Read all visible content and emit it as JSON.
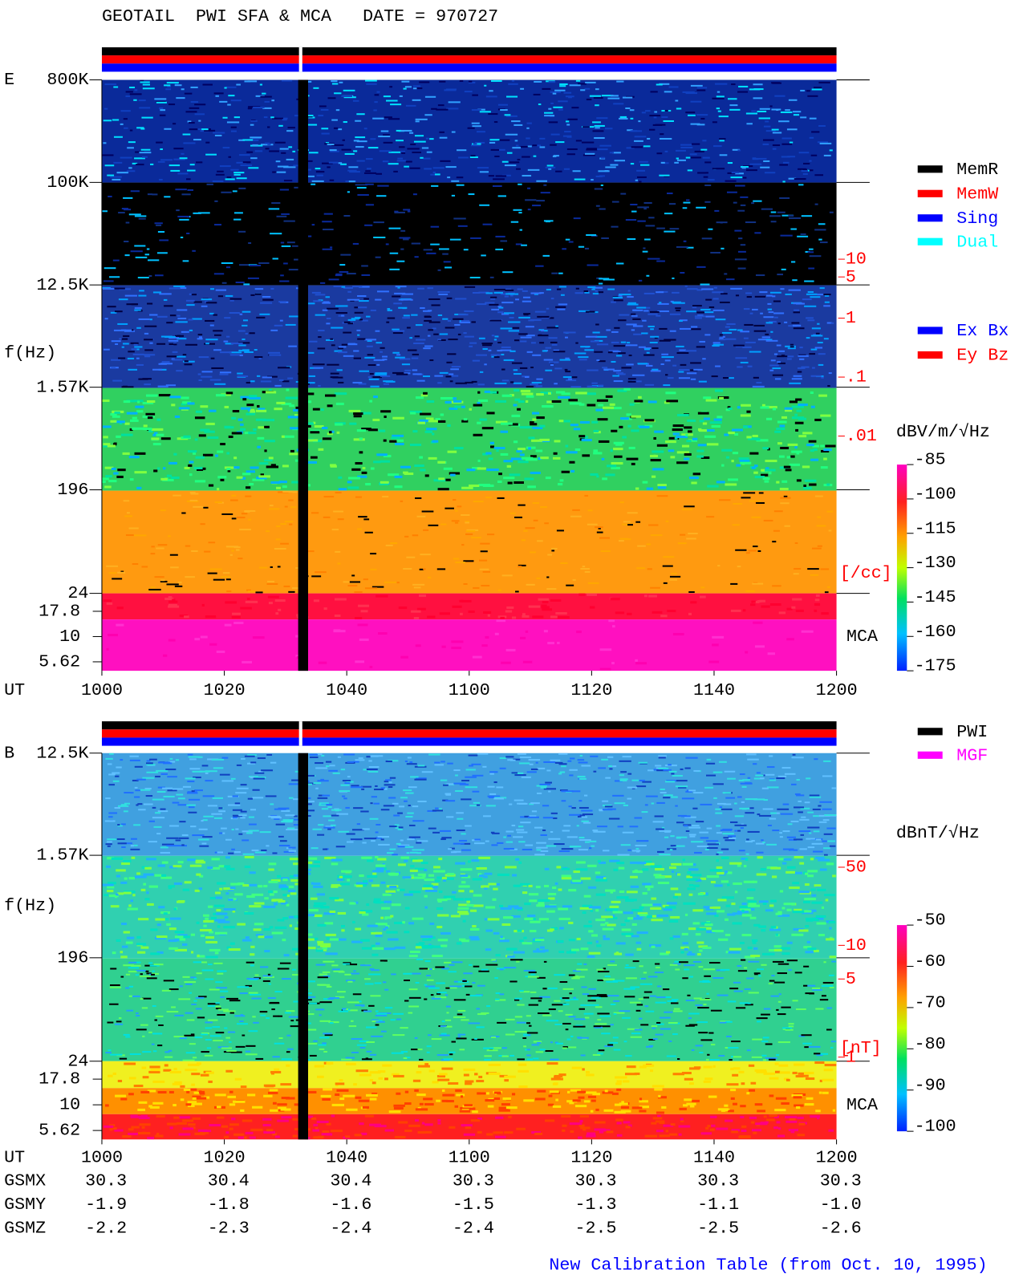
{
  "title": "GEOTAIL  PWI SFA & MCA   DATE = 970727",
  "footer": "New Calibration Table (from Oct. 10, 1995)",
  "chart_data": [
    {
      "type": "spectrogram",
      "panel_label": "E",
      "ylabel": "f(Hz)",
      "xlabel": "UT",
      "categories": [
        "1000",
        "1020",
        "1040",
        "1100",
        "1120",
        "1140",
        "1200"
      ],
      "yscale": "log",
      "ylim": [
        24,
        800000
      ],
      "yticks": [
        {
          "value": 800000,
          "label": "800K"
        },
        {
          "value": 100000,
          "label": "100K"
        },
        {
          "value": 12500,
          "label": "12.5K"
        },
        {
          "value": 1570,
          "label": "1.57K"
        },
        196,
        24
      ],
      "mca_label": "MCA",
      "mca_ylim": [
        5.62,
        17.8
      ],
      "mca_yticks": [
        17.8,
        10,
        5.62
      ],
      "y2lim": [
        0.01,
        10
      ],
      "y2ticks": [
        10,
        5,
        1,
        {
          "value": 0.1,
          "label": ".1"
        },
        {
          "value": 0.01,
          "label": ".01"
        }
      ],
      "y2label": "[/cc]",
      "y2color": "#ff0000",
      "colorbar": {
        "label": "dBV/m/√Hz",
        "clim": [
          -175,
          -85
        ],
        "ticks": [
          -85,
          -100,
          -115,
          -130,
          -145,
          -160,
          -175
        ]
      },
      "legend": [
        {
          "name": "MemR",
          "color": "#000000"
        },
        {
          "name": "MemW",
          "color": "#ff0000"
        },
        {
          "name": "Sing",
          "color": "#0000ff"
        },
        {
          "name": "Dual",
          "color": "#00ffff"
        }
      ],
      "legend2": [
        {
          "name": "Ex Bx",
          "color": "#0000ff"
        },
        {
          "name": "Ey Bz",
          "color": "#ff0000"
        }
      ]
    },
    {
      "type": "spectrogram",
      "panel_label": "B",
      "ylabel": "f(Hz)",
      "xlabel": "UT",
      "categories": [
        "1000",
        "1020",
        "1040",
        "1100",
        "1120",
        "1140",
        "1200"
      ],
      "yscale": "log",
      "ylim": [
        24,
        12500
      ],
      "yticks": [
        {
          "value": 12500,
          "label": "12.5K"
        },
        {
          "value": 1570,
          "label": "1.57K"
        },
        196,
        24
      ],
      "mca_label": "MCA",
      "mca_ylim": [
        5.62,
        17.8
      ],
      "mca_yticks": [
        17.8,
        10,
        5.62
      ],
      "y2lim": [
        1,
        50
      ],
      "y2ticks": [
        50,
        10,
        5,
        1
      ],
      "y2label": "[nT]",
      "y2color": "#ff0000",
      "colorbar": {
        "label": "dBnT/√Hz",
        "clim": [
          -100,
          -50
        ],
        "ticks": [
          -50,
          -60,
          -70,
          -80,
          -90,
          -100
        ]
      },
      "legend": [
        {
          "name": "PWI",
          "color": "#000000"
        },
        {
          "name": "MGF",
          "color": "#ff00ff"
        }
      ]
    }
  ],
  "orbit": {
    "rows": [
      {
        "label": "GSMX",
        "values": [
          "30.3",
          "30.4",
          "30.4",
          "30.3",
          "30.3",
          "30.3",
          "30.3"
        ]
      },
      {
        "label": "GSMY",
        "values": [
          "-1.9",
          "-1.8",
          "-1.6",
          "-1.5",
          "-1.3",
          "-1.1",
          "-1.0"
        ]
      },
      {
        "label": "GSMZ",
        "values": [
          "-2.2",
          "-2.3",
          "-2.4",
          "-2.4",
          "-2.5",
          "-2.5",
          "-2.6"
        ]
      }
    ]
  }
}
